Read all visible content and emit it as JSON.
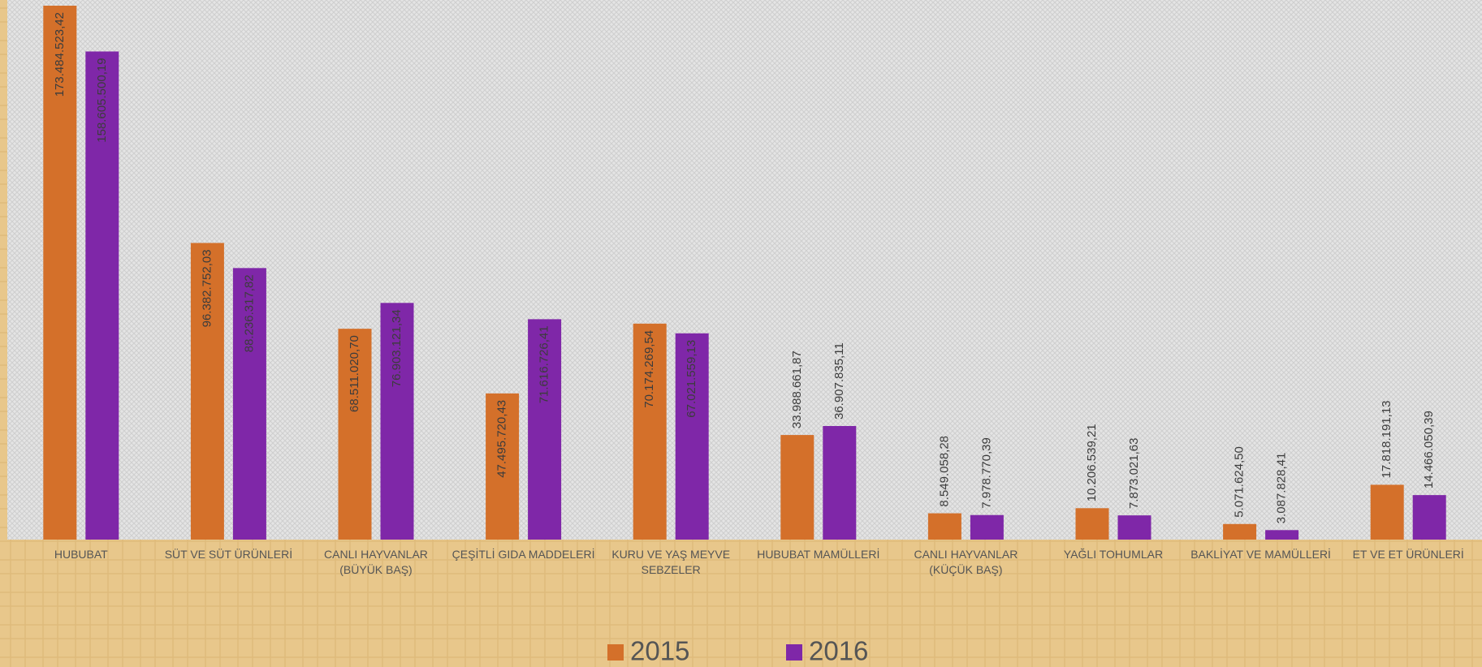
{
  "chart_data": {
    "type": "bar",
    "categories": [
      "HUBUBAT",
      "SÜT VE SÜT ÜRÜNLERİ",
      "CANLI HAYVANLAR (BÜYÜK BAŞ)",
      "ÇEŞİTLİ GIDA MADDELERİ",
      "KURU VE YAŞ MEYVE SEBZELER",
      "HUBUBAT MAMÜLLERİ",
      "CANLI HAYVANLAR (KÜÇÜK BAŞ)",
      "YAĞLI TOHUMLAR",
      "BAKLİYAT VE MAMÜLLERİ",
      "ET VE ET ÜRÜNLERİ"
    ],
    "series": [
      {
        "name": "2015",
        "color": "#d4702a",
        "values": [
          173484523.42,
          96382752.03,
          68511020.7,
          47495720.43,
          70174269.54,
          33988661.87,
          8549058.28,
          10206539.21,
          5071624.5,
          17818191.13
        ],
        "value_labels": [
          "173.484.523,42",
          "96.382.752,03",
          "68.511.020,70",
          "47.495.720,43",
          "70.174.269,54",
          "33.988.661,87",
          "8.549.058,28",
          "10.206.539,21",
          "5.071.624,50",
          "17.818.191,13"
        ]
      },
      {
        "name": "2016",
        "color": "#7f27a8",
        "values": [
          158605500.19,
          88236317.82,
          76903121.34,
          71616726.41,
          67021559.13,
          36907835.11,
          7978770.39,
          7873021.63,
          3087828.41,
          14466050.39
        ],
        "value_labels": [
          "158.605.500,19",
          "88.236.317,82",
          "76.903.121,34",
          "71.616.726,41",
          "67.021.559,13",
          "36.907.835,11",
          "7.978.770,39",
          "7.873.021,63",
          "3.087.828,41",
          "14.466.050,39"
        ]
      }
    ],
    "legend": "bottom"
  }
}
